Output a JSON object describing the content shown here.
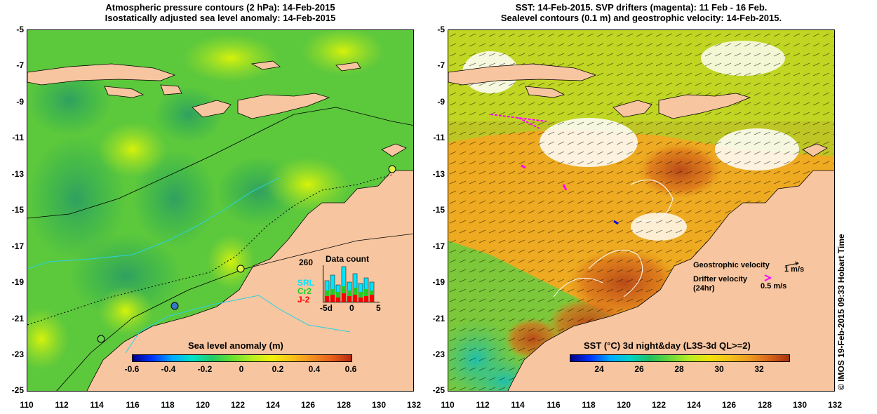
{
  "left": {
    "title_line1": "Atmospheric pressure contours (2 hPa): 14-Feb-2015",
    "title_line2": "Isostatically adjusted sea level anomaly: 14-Feb-2015",
    "colorbar": {
      "title": "Sea level anomaly (m)",
      "ticks": [
        "-0.6",
        "-0.4",
        "-0.2",
        "0",
        "0.2",
        "0.4",
        "0.6"
      ],
      "range": [
        -0.6,
        0.6
      ]
    },
    "data_count": {
      "title": "Data count",
      "max_label": "260",
      "x_ticks": [
        "-5d",
        "0",
        "5"
      ],
      "series": [
        {
          "name": "SRL",
          "color": "#00e5ff"
        },
        {
          "name": "Cr2",
          "color": "#22cc22"
        },
        {
          "name": "J-2",
          "color": "#ff0000"
        }
      ]
    }
  },
  "right": {
    "title_line1": "SST: 14-Feb-2015. SVP drifters (magenta): 11 Feb - 16 Feb.",
    "title_line2": "Sealevel contours (0.1 m) and geostrophic velocity: 14-Feb-2015.",
    "colorbar": {
      "title": "SST (°C) 3d night&day (L3S-3d QL>=2)",
      "ticks": [
        "24",
        "26",
        "28",
        "30",
        "32"
      ],
      "range": [
        22.5,
        33.5
      ]
    },
    "legend": {
      "geo_label": "Geostrophic velocity",
      "geo_scale": "1 m/s",
      "drifter_label": "Drifter velocity",
      "drifter_sub": "(24hr)",
      "drifter_scale": "0.5 m/s"
    }
  },
  "axes": {
    "y_ticks": [
      "-5",
      "-7",
      "-9",
      "-11",
      "-13",
      "-15",
      "-17",
      "-19",
      "-21",
      "-23",
      "-25"
    ],
    "x_ticks": [
      "110",
      "112",
      "114",
      "116",
      "118",
      "120",
      "122",
      "124",
      "126",
      "128",
      "130",
      "132"
    ]
  },
  "credit": "© IMOS 19-Feb-2015 09:33 Hobart Time",
  "colors": {
    "land": "#f7c59f",
    "sla_mid": "#6ad23a",
    "sst_warm": "#f2a31c",
    "sst_hot": "#c2551b",
    "drifter": "#ff00ff"
  }
}
